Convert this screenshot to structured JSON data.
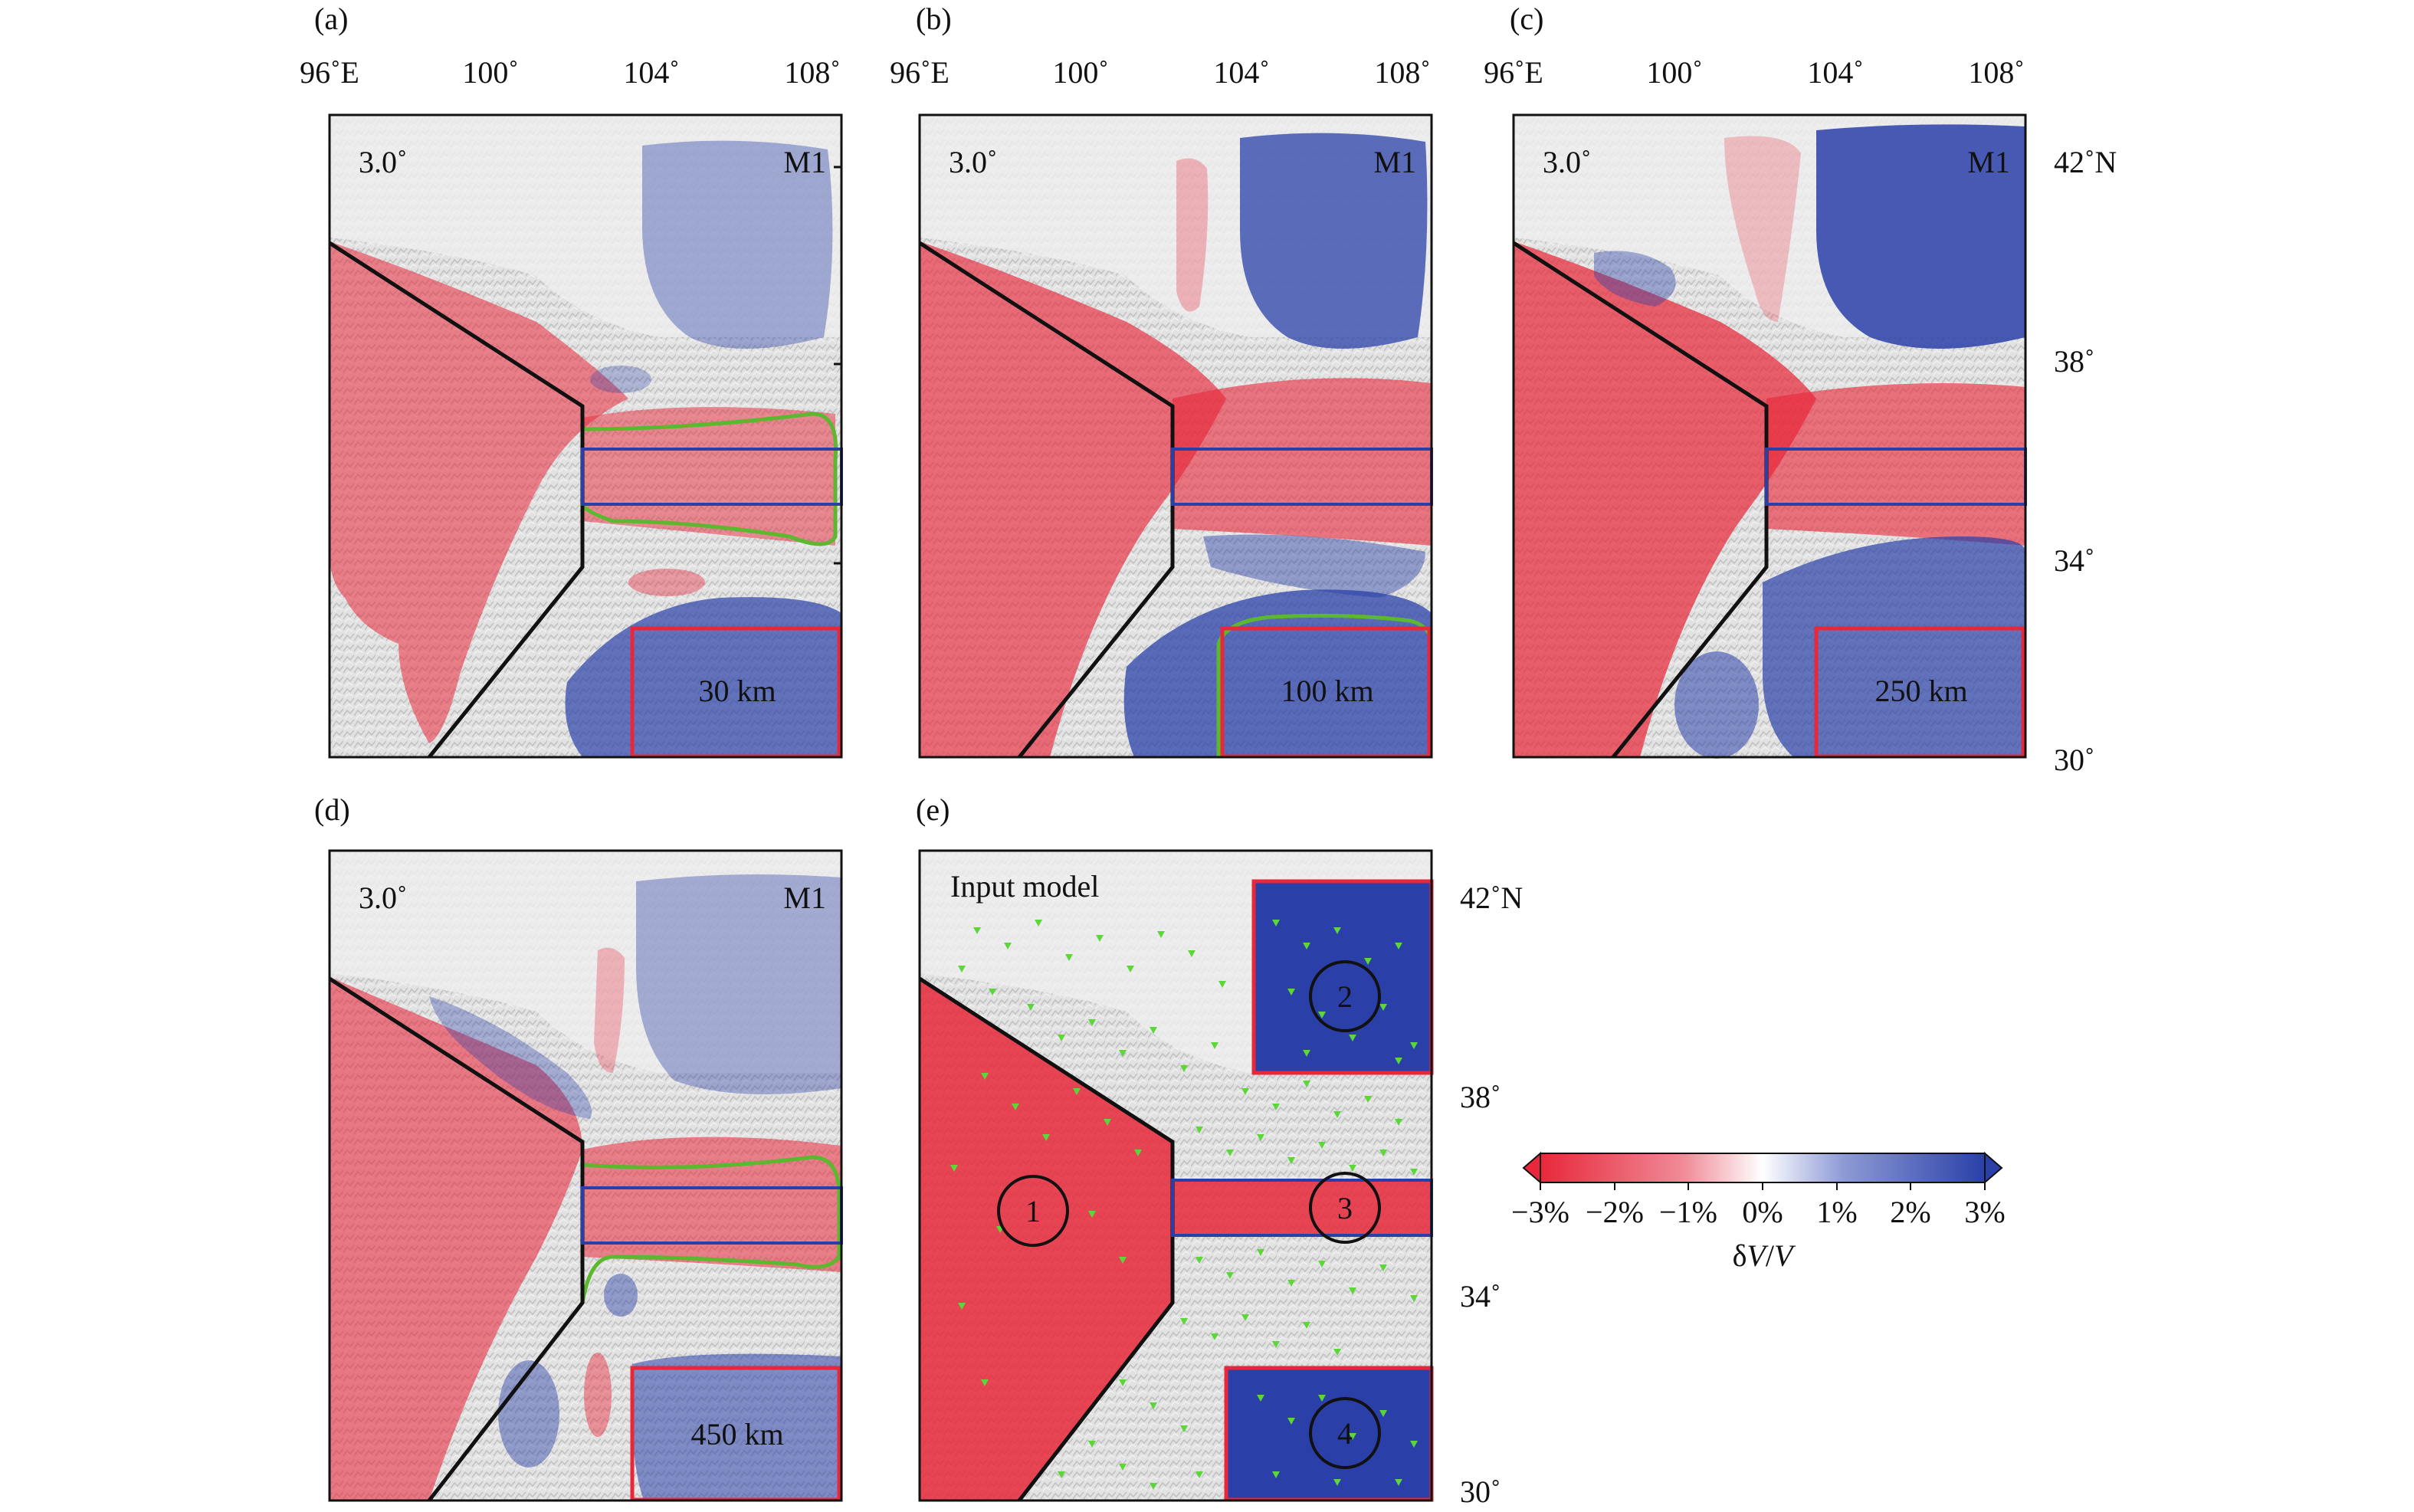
{
  "figure": {
    "lon_ticks": [
      "96˚E",
      "100˚",
      "104˚",
      "108˚"
    ],
    "lat_ticks_top": [
      "42˚N",
      "38˚",
      "34˚",
      "30˚"
    ],
    "lat_ticks_bottom": [
      "42˚N",
      "38˚",
      "34˚",
      "30˚"
    ],
    "panels": [
      {
        "id": "a",
        "label": "(a)",
        "grid": "3.0˚",
        "model": "M1",
        "depth": "30 km"
      },
      {
        "id": "b",
        "label": "(b)",
        "grid": "3.0˚",
        "model": "M1",
        "depth": "100 km"
      },
      {
        "id": "c",
        "label": "(c)",
        "grid": "3.0˚",
        "model": "M1",
        "depth": "250 km"
      },
      {
        "id": "d",
        "label": "(d)",
        "grid": "3.0˚",
        "model": "M1",
        "depth": "450 km"
      },
      {
        "id": "e",
        "label": "(e)",
        "title": "Input model",
        "circle_labels": [
          "1",
          "2",
          "3",
          "4"
        ]
      }
    ],
    "colorbar": {
      "ticks": [
        "−3%",
        "−2%",
        "−1%",
        "0%",
        "1%",
        "2%",
        "3%"
      ],
      "label_prefix": "δ",
      "label_v1": "V",
      "label_slash": "/",
      "label_v2": "V",
      "colors": {
        "negative": "#e8283a",
        "zero": "#ffffff",
        "positive": "#2a40a8"
      }
    }
  }
}
